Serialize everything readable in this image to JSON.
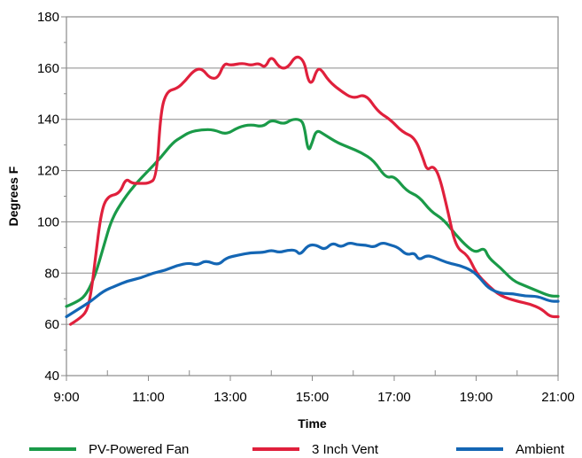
{
  "chart_data": {
    "type": "line",
    "title": "",
    "xlabel": "Time",
    "ylabel": "Degrees F",
    "xlim": [
      9,
      21
    ],
    "ylim": [
      40,
      180
    ],
    "x_ticks": [
      9,
      11,
      13,
      15,
      17,
      19,
      21
    ],
    "x_tick_labels": [
      "9:00",
      "11:00",
      "13:00",
      "15:00",
      "17:00",
      "19:00",
      "21:00"
    ],
    "y_ticks": [
      40,
      60,
      80,
      100,
      120,
      140,
      160,
      180
    ],
    "y_tick_labels": [
      "40",
      "60",
      "80",
      "100",
      "120",
      "140",
      "160",
      "180"
    ],
    "grid": "horizontal",
    "legend_position": "bottom",
    "series": [
      {
        "name": "PV-Powered Fan",
        "color": "#1a9a48",
        "points": [
          [
            9.0,
            67
          ],
          [
            9.3,
            69
          ],
          [
            9.5,
            72
          ],
          [
            9.7,
            79
          ],
          [
            9.9,
            90
          ],
          [
            10.1,
            101
          ],
          [
            10.4,
            109
          ],
          [
            10.7,
            115
          ],
          [
            11.0,
            120
          ],
          [
            11.3,
            125
          ],
          [
            11.6,
            131
          ],
          [
            11.8,
            133
          ],
          [
            12.0,
            135
          ],
          [
            12.3,
            136
          ],
          [
            12.6,
            136
          ],
          [
            12.9,
            134
          ],
          [
            13.2,
            137
          ],
          [
            13.5,
            138
          ],
          [
            13.8,
            137
          ],
          [
            14.0,
            140
          ],
          [
            14.3,
            138
          ],
          [
            14.5,
            140
          ],
          [
            14.7,
            140
          ],
          [
            14.8,
            138
          ],
          [
            14.9,
            127
          ],
          [
            15.0,
            131
          ],
          [
            15.1,
            136
          ],
          [
            15.3,
            134
          ],
          [
            15.6,
            131
          ],
          [
            15.9,
            129
          ],
          [
            16.2,
            127
          ],
          [
            16.5,
            124
          ],
          [
            16.8,
            117
          ],
          [
            17.0,
            118
          ],
          [
            17.3,
            112
          ],
          [
            17.6,
            110
          ],
          [
            17.9,
            104
          ],
          [
            18.2,
            101
          ],
          [
            18.5,
            95
          ],
          [
            18.8,
            90
          ],
          [
            19.0,
            88
          ],
          [
            19.2,
            90
          ],
          [
            19.3,
            86
          ],
          [
            19.6,
            82
          ],
          [
            19.9,
            77
          ],
          [
            20.2,
            75
          ],
          [
            20.5,
            73
          ],
          [
            20.8,
            71
          ],
          [
            21.0,
            71
          ]
        ]
      },
      {
        "name": "3 Inch Vent",
        "color": "#e0203c",
        "points": [
          [
            9.1,
            60
          ],
          [
            9.3,
            62
          ],
          [
            9.5,
            65
          ],
          [
            9.6,
            72
          ],
          [
            9.7,
            85
          ],
          [
            9.85,
            104
          ],
          [
            10.0,
            110
          ],
          [
            10.3,
            111
          ],
          [
            10.45,
            117
          ],
          [
            10.6,
            115
          ],
          [
            10.8,
            115
          ],
          [
            11.0,
            115
          ],
          [
            11.2,
            117
          ],
          [
            11.3,
            143
          ],
          [
            11.45,
            151
          ],
          [
            11.7,
            152
          ],
          [
            11.9,
            155
          ],
          [
            12.1,
            159
          ],
          [
            12.3,
            160
          ],
          [
            12.5,
            156
          ],
          [
            12.7,
            156
          ],
          [
            12.85,
            162
          ],
          [
            13.0,
            161
          ],
          [
            13.3,
            162
          ],
          [
            13.5,
            161
          ],
          [
            13.7,
            162
          ],
          [
            13.85,
            160
          ],
          [
            14.0,
            165
          ],
          [
            14.2,
            160
          ],
          [
            14.4,
            160
          ],
          [
            14.6,
            165
          ],
          [
            14.8,
            163
          ],
          [
            14.9,
            155
          ],
          [
            15.0,
            154
          ],
          [
            15.1,
            159
          ],
          [
            15.2,
            160
          ],
          [
            15.4,
            155
          ],
          [
            15.7,
            151
          ],
          [
            16.0,
            148
          ],
          [
            16.3,
            150
          ],
          [
            16.6,
            143
          ],
          [
            16.9,
            140
          ],
          [
            17.2,
            135
          ],
          [
            17.5,
            133
          ],
          [
            17.7,
            125
          ],
          [
            17.8,
            120
          ],
          [
            17.95,
            122
          ],
          [
            18.1,
            118
          ],
          [
            18.3,
            105
          ],
          [
            18.5,
            90
          ],
          [
            18.8,
            87
          ],
          [
            19.0,
            80
          ],
          [
            19.3,
            75
          ],
          [
            19.6,
            71
          ],
          [
            20.0,
            69
          ],
          [
            20.3,
            68
          ],
          [
            20.6,
            66
          ],
          [
            20.8,
            63
          ],
          [
            21.0,
            63
          ]
        ]
      },
      {
        "name": "Ambient",
        "color": "#1466b4",
        "points": [
          [
            9.0,
            63
          ],
          [
            9.3,
            66
          ],
          [
            9.6,
            69
          ],
          [
            9.9,
            73
          ],
          [
            10.2,
            75
          ],
          [
            10.5,
            77
          ],
          [
            10.8,
            78
          ],
          [
            11.1,
            80
          ],
          [
            11.4,
            81
          ],
          [
            11.7,
            83
          ],
          [
            12.0,
            84
          ],
          [
            12.2,
            83
          ],
          [
            12.4,
            85
          ],
          [
            12.7,
            83
          ],
          [
            12.9,
            86
          ],
          [
            13.2,
            87
          ],
          [
            13.5,
            88
          ],
          [
            13.8,
            88
          ],
          [
            14.0,
            89
          ],
          [
            14.2,
            88
          ],
          [
            14.4,
            89
          ],
          [
            14.6,
            89
          ],
          [
            14.7,
            87
          ],
          [
            14.9,
            91
          ],
          [
            15.1,
            91
          ],
          [
            15.3,
            89
          ],
          [
            15.5,
            92
          ],
          [
            15.7,
            90
          ],
          [
            15.9,
            92
          ],
          [
            16.1,
            91
          ],
          [
            16.3,
            91
          ],
          [
            16.5,
            90
          ],
          [
            16.7,
            92
          ],
          [
            16.9,
            91
          ],
          [
            17.1,
            90
          ],
          [
            17.3,
            87
          ],
          [
            17.5,
            88
          ],
          [
            17.6,
            85
          ],
          [
            17.8,
            87
          ],
          [
            18.0,
            86
          ],
          [
            18.3,
            84
          ],
          [
            18.6,
            83
          ],
          [
            18.9,
            81
          ],
          [
            19.1,
            78
          ],
          [
            19.3,
            74
          ],
          [
            19.6,
            72
          ],
          [
            19.9,
            72
          ],
          [
            20.2,
            71
          ],
          [
            20.5,
            71
          ],
          [
            20.8,
            69
          ],
          [
            21.0,
            69
          ]
        ]
      }
    ]
  }
}
